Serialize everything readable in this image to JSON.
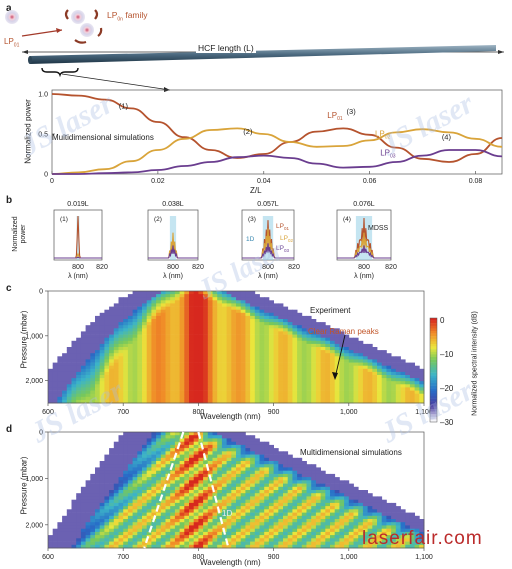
{
  "panel_a": {
    "letter": "a",
    "fiber": {
      "input_mode": "LP",
      "input_mode_sub": "01",
      "family_label": "LP",
      "family_sub": "0n",
      "family_suffix": " family",
      "length_label": "HCF length (L)"
    },
    "chart_data": {
      "type": "line",
      "xlabel": "Z/L",
      "ylabel": "Normalized power",
      "xlim": [
        0,
        0.085
      ],
      "ylim": [
        0,
        1.05
      ],
      "xticks": [
        "0",
        "0.02",
        "0.04",
        "0.06",
        "0.08"
      ],
      "yticks": [
        "0",
        "0.5",
        "1.0"
      ],
      "annotation": "Multidimensional simulations",
      "point_labels": [
        "(1)",
        "(2)",
        "(3)",
        "(4)"
      ],
      "series": [
        {
          "name": "LP01",
          "label": "LP",
          "sub": "01",
          "color": "#b5532e",
          "x": [
            0,
            0.005,
            0.01,
            0.015,
            0.02,
            0.025,
            0.03,
            0.035,
            0.04,
            0.045,
            0.05,
            0.055,
            0.06,
            0.065,
            0.07,
            0.075,
            0.08,
            0.085
          ],
          "y": [
            1.0,
            0.98,
            0.93,
            0.82,
            0.65,
            0.46,
            0.3,
            0.2,
            0.25,
            0.4,
            0.53,
            0.57,
            0.49,
            0.33,
            0.19,
            0.15,
            0.25,
            0.45
          ]
        },
        {
          "name": "LP02",
          "label": "LP",
          "sub": "02",
          "color": "#d9a43a",
          "x": [
            0,
            0.005,
            0.01,
            0.015,
            0.02,
            0.025,
            0.03,
            0.035,
            0.04,
            0.045,
            0.05,
            0.055,
            0.06,
            0.065,
            0.07,
            0.075,
            0.08,
            0.085
          ],
          "y": [
            0.0,
            0.02,
            0.06,
            0.16,
            0.3,
            0.44,
            0.55,
            0.57,
            0.5,
            0.4,
            0.34,
            0.35,
            0.42,
            0.52,
            0.56,
            0.52,
            0.44,
            0.34
          ]
        },
        {
          "name": "LP03",
          "label": "LP",
          "sub": "03",
          "color": "#6a3d8f",
          "x": [
            0,
            0.005,
            0.01,
            0.015,
            0.02,
            0.025,
            0.03,
            0.035,
            0.04,
            0.045,
            0.05,
            0.055,
            0.06,
            0.065,
            0.07,
            0.075,
            0.08,
            0.085
          ],
          "y": [
            0.0,
            0.0,
            0.01,
            0.02,
            0.05,
            0.1,
            0.15,
            0.21,
            0.23,
            0.2,
            0.13,
            0.08,
            0.09,
            0.15,
            0.23,
            0.3,
            0.3,
            0.22
          ]
        }
      ]
    }
  },
  "panel_b": {
    "letter": "b",
    "ylabel": "Normalized power",
    "xlabel": "λ (nm)",
    "chart_data": {
      "type": "line",
      "xlim": [
        780,
        820
      ],
      "xticks": [
        "800",
        "820"
      ],
      "subplots": [
        {
          "tag": "(1)",
          "title": "0.019L"
        },
        {
          "tag": "(2)",
          "title": "0.038L"
        },
        {
          "tag": "(3)",
          "title": "0.057L"
        },
        {
          "tag": "(4)",
          "title": "0.076L"
        }
      ],
      "legend": [
        "LP01",
        "LP02",
        "LP03",
        "1D",
        "MDSS"
      ]
    }
  },
  "panel_c": {
    "letter": "c",
    "chart_data": {
      "type": "heatmap",
      "xlabel": "Wavelength (nm)",
      "ylabel": "Pressure (mbar)",
      "xticks": [
        "600",
        "700",
        "800",
        "900",
        "1,000",
        "1,100"
      ],
      "yticks": [
        "0",
        "1,000",
        "2,000"
      ],
      "xlim": [
        600,
        1100
      ],
      "ylim": [
        0,
        2500
      ],
      "annotation": "Experiment",
      "callout": "Clear Raman peaks",
      "colorbar": {
        "label": "Normalized spectral intensity (dB)",
        "ticks": [
          "0",
          "–10",
          "–20",
          "–30"
        ],
        "range": [
          -30,
          0
        ]
      }
    }
  },
  "panel_d": {
    "letter": "d",
    "chart_data": {
      "type": "heatmap",
      "xlabel": "Wavelength (nm)",
      "ylabel": "Pressure (mbar)",
      "xticks": [
        "600",
        "700",
        "800",
        "900",
        "1,000",
        "1,100"
      ],
      "yticks": [
        "0",
        "1,000",
        "2,000"
      ],
      "xlim": [
        600,
        1100
      ],
      "ylim": [
        0,
        2500
      ],
      "annotation": "Multidimensional simulations",
      "line_label": "1D"
    }
  },
  "watermarks": {
    "brand": "JS laser",
    "chinese": "江苏省激光产业技术创新战略联盟",
    "site": "laserfair.com"
  }
}
